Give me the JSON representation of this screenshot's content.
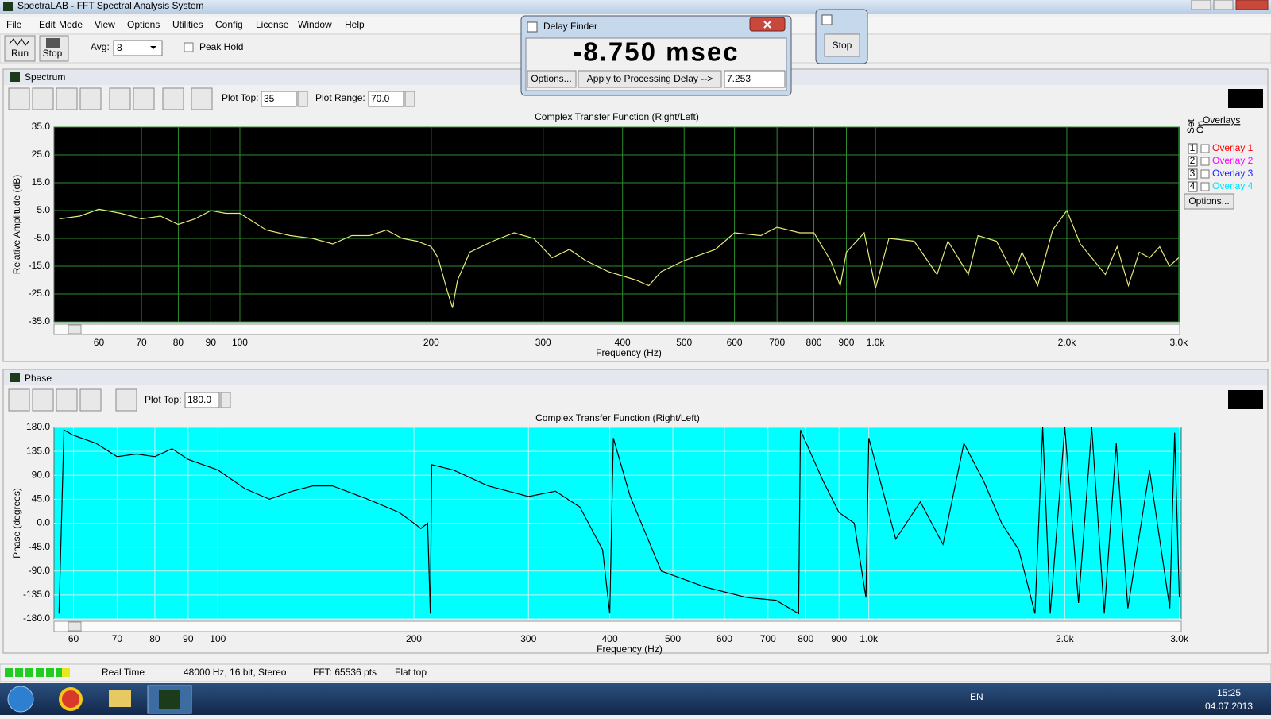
{
  "window": {
    "title": "SpectraLAB - FFT Spectral Analysis System",
    "menu": [
      "File",
      "Edit",
      "Mode",
      "View",
      "Options",
      "Utilities",
      "Config",
      "License",
      "Window",
      "Help"
    ]
  },
  "toolbar": {
    "run": "Run",
    "stop": "Stop",
    "avg_label": "Avg:",
    "avg_value": "8",
    "peak_hold": "Peak Hold"
  },
  "delay_finder": {
    "title": "Delay Finder",
    "readout": "-8.750 msec",
    "options": "Options...",
    "apply": "Apply to Processing Delay -->",
    "delay_value": "7.253"
  },
  "mini_window": {
    "stop": "Stop"
  },
  "spectrum_panel": {
    "title": "Spectrum",
    "plot_top_label": "Plot Top:",
    "plot_top_value": "35",
    "plot_range_label": "Plot Range:",
    "plot_range_value": "70.0",
    "overlays": {
      "title": "Overlays",
      "set": "Set",
      "on": "On",
      "options": "Options...",
      "items": [
        {
          "number": "1",
          "label": "Overlay 1",
          "color": "#ff0000"
        },
        {
          "number": "2",
          "label": "Overlay 2",
          "color": "#ff00ff"
        },
        {
          "number": "3",
          "label": "Overlay 3",
          "color": "#2020ff"
        },
        {
          "number": "4",
          "label": "Overlay 4",
          "color": "#00e0ff"
        }
      ]
    }
  },
  "phase_panel": {
    "title": "Phase",
    "plot_top_label": "Plot Top:",
    "plot_top_value": "180.0"
  },
  "status_bar": {
    "mode": "Real Time",
    "format": "48000 Hz, 16 bit, Stereo",
    "fft": "FFT: 65536 pts",
    "window": "Flat top"
  },
  "taskbar": {
    "language": "EN",
    "time": "15:25",
    "date": "04.07.2013"
  },
  "chart_data": [
    {
      "type": "line",
      "title": "Complex Transfer Function (Right/Left)",
      "xlabel": "Frequency (Hz)",
      "ylabel": "Relative Amplitude (dB)",
      "xscale": "log",
      "xlim": [
        51,
        3010
      ],
      "ylim": [
        -35,
        35
      ],
      "background": "#000000",
      "grid": true,
      "grid_color": "#2e8b2e",
      "color": "#e8e878",
      "xticks": [
        60,
        70,
        80,
        90,
        100,
        200,
        300,
        400,
        500,
        600,
        700,
        800,
        900,
        {
          "value": 1000,
          "label": "1.0k"
        },
        {
          "value": 2000,
          "label": "2.0k"
        },
        {
          "value": 3000,
          "label": "3.0k"
        }
      ],
      "yticks": [
        {
          "value": 35,
          "label": "35.0"
        },
        {
          "value": 25,
          "label": "25.0"
        },
        {
          "value": 15,
          "label": "15.0"
        },
        {
          "value": 5,
          "label": "5.0"
        },
        {
          "value": -5,
          "label": "-5.0"
        },
        {
          "value": -15,
          "label": "-15.0"
        },
        {
          "value": -25,
          "label": "-25.0"
        },
        {
          "value": -35,
          "label": "-35.0"
        }
      ],
      "x": [
        52,
        56,
        60,
        65,
        70,
        75,
        80,
        85,
        90,
        95,
        100,
        110,
        120,
        130,
        140,
        150,
        160,
        170,
        180,
        190,
        200,
        205,
        212,
        216,
        220,
        230,
        250,
        270,
        290,
        310,
        330,
        350,
        380,
        420,
        440,
        460,
        500,
        560,
        600,
        660,
        700,
        760,
        800,
        850,
        880,
        900,
        960,
        1000,
        1050,
        1150,
        1250,
        1300,
        1400,
        1450,
        1550,
        1650,
        1700,
        1800,
        1900,
        2000,
        2100,
        2300,
        2400,
        2500,
        2600,
        2700,
        2800,
        2900,
        3000
      ],
      "values": [
        2,
        3,
        5.5,
        4,
        2,
        3,
        0,
        2,
        5,
        4,
        4,
        -2,
        -4,
        -5,
        -7,
        -4,
        -4,
        -2,
        -5,
        -6,
        -8,
        -12,
        -24,
        -30,
        -20,
        -10,
        -6,
        -3,
        -5,
        -12,
        -9,
        -13,
        -17,
        -20,
        -22,
        -17,
        -13,
        -9,
        -3,
        -4,
        -1,
        -3,
        -3,
        -13,
        -22,
        -10,
        -3,
        -23,
        -5,
        -6,
        -18,
        -6,
        -18,
        -4,
        -6,
        -18,
        -10,
        -22,
        -2,
        5,
        -7,
        -18,
        -8,
        -22,
        -10,
        -12,
        -8,
        -15,
        -12
      ]
    },
    {
      "type": "line",
      "title": "Complex Transfer Function (Right/Left)",
      "xlabel": "Frequency (Hz)",
      "ylabel": "Phase (degrees)",
      "xscale": "log",
      "xlim": [
        56,
        3020
      ],
      "ylim": [
        -180,
        180
      ],
      "background": "#00ffff",
      "grid": true,
      "grid_color": "#c8f0f0",
      "color": "#000000",
      "xticks": [
        60,
        70,
        80,
        90,
        100,
        200,
        300,
        400,
        500,
        600,
        700,
        800,
        900,
        {
          "value": 1000,
          "label": "1.0k"
        },
        {
          "value": 2000,
          "label": "2.0k"
        },
        {
          "value": 3000,
          "label": "3.0k"
        }
      ],
      "yticks": [
        {
          "value": 180,
          "label": "180.0"
        },
        {
          "value": 135,
          "label": "135.0"
        },
        {
          "value": 90,
          "label": "90.0"
        },
        {
          "value": 45,
          "label": "45.0"
        },
        {
          "value": 0,
          "label": "0.0"
        },
        {
          "value": -45,
          "label": "-45.0"
        },
        {
          "value": -90,
          "label": "-90.0"
        },
        {
          "value": -135,
          "label": "-135.0"
        },
        {
          "value": -180,
          "label": "-180.0"
        }
      ],
      "x": [
        57,
        58,
        60,
        65,
        70,
        75,
        80,
        85,
        90,
        100,
        110,
        120,
        130,
        140,
        150,
        170,
        190,
        200,
        205,
        210,
        212,
        213,
        230,
        260,
        300,
        330,
        360,
        390,
        400,
        405,
        430,
        480,
        560,
        650,
        720,
        780,
        785,
        850,
        900,
        950,
        990,
        1000,
        1100,
        1200,
        1300,
        1400,
        1500,
        1600,
        1700,
        1800,
        1850,
        1900,
        2000,
        2100,
        2200,
        2300,
        2400,
        2500,
        2700,
        2900,
        2950,
        3000
      ],
      "values": [
        -170,
        175,
        165,
        150,
        125,
        130,
        125,
        140,
        120,
        100,
        65,
        45,
        60,
        70,
        70,
        45,
        20,
        0,
        -10,
        0,
        -170,
        110,
        100,
        70,
        50,
        60,
        30,
        -50,
        -170,
        160,
        50,
        -90,
        -120,
        -140,
        -145,
        -170,
        175,
        80,
        20,
        0,
        -140,
        160,
        -30,
        40,
        -40,
        150,
        80,
        0,
        -50,
        -170,
        180,
        -170,
        180,
        -150,
        180,
        -170,
        150,
        -160,
        100,
        -160,
        170,
        -140
      ]
    }
  ]
}
